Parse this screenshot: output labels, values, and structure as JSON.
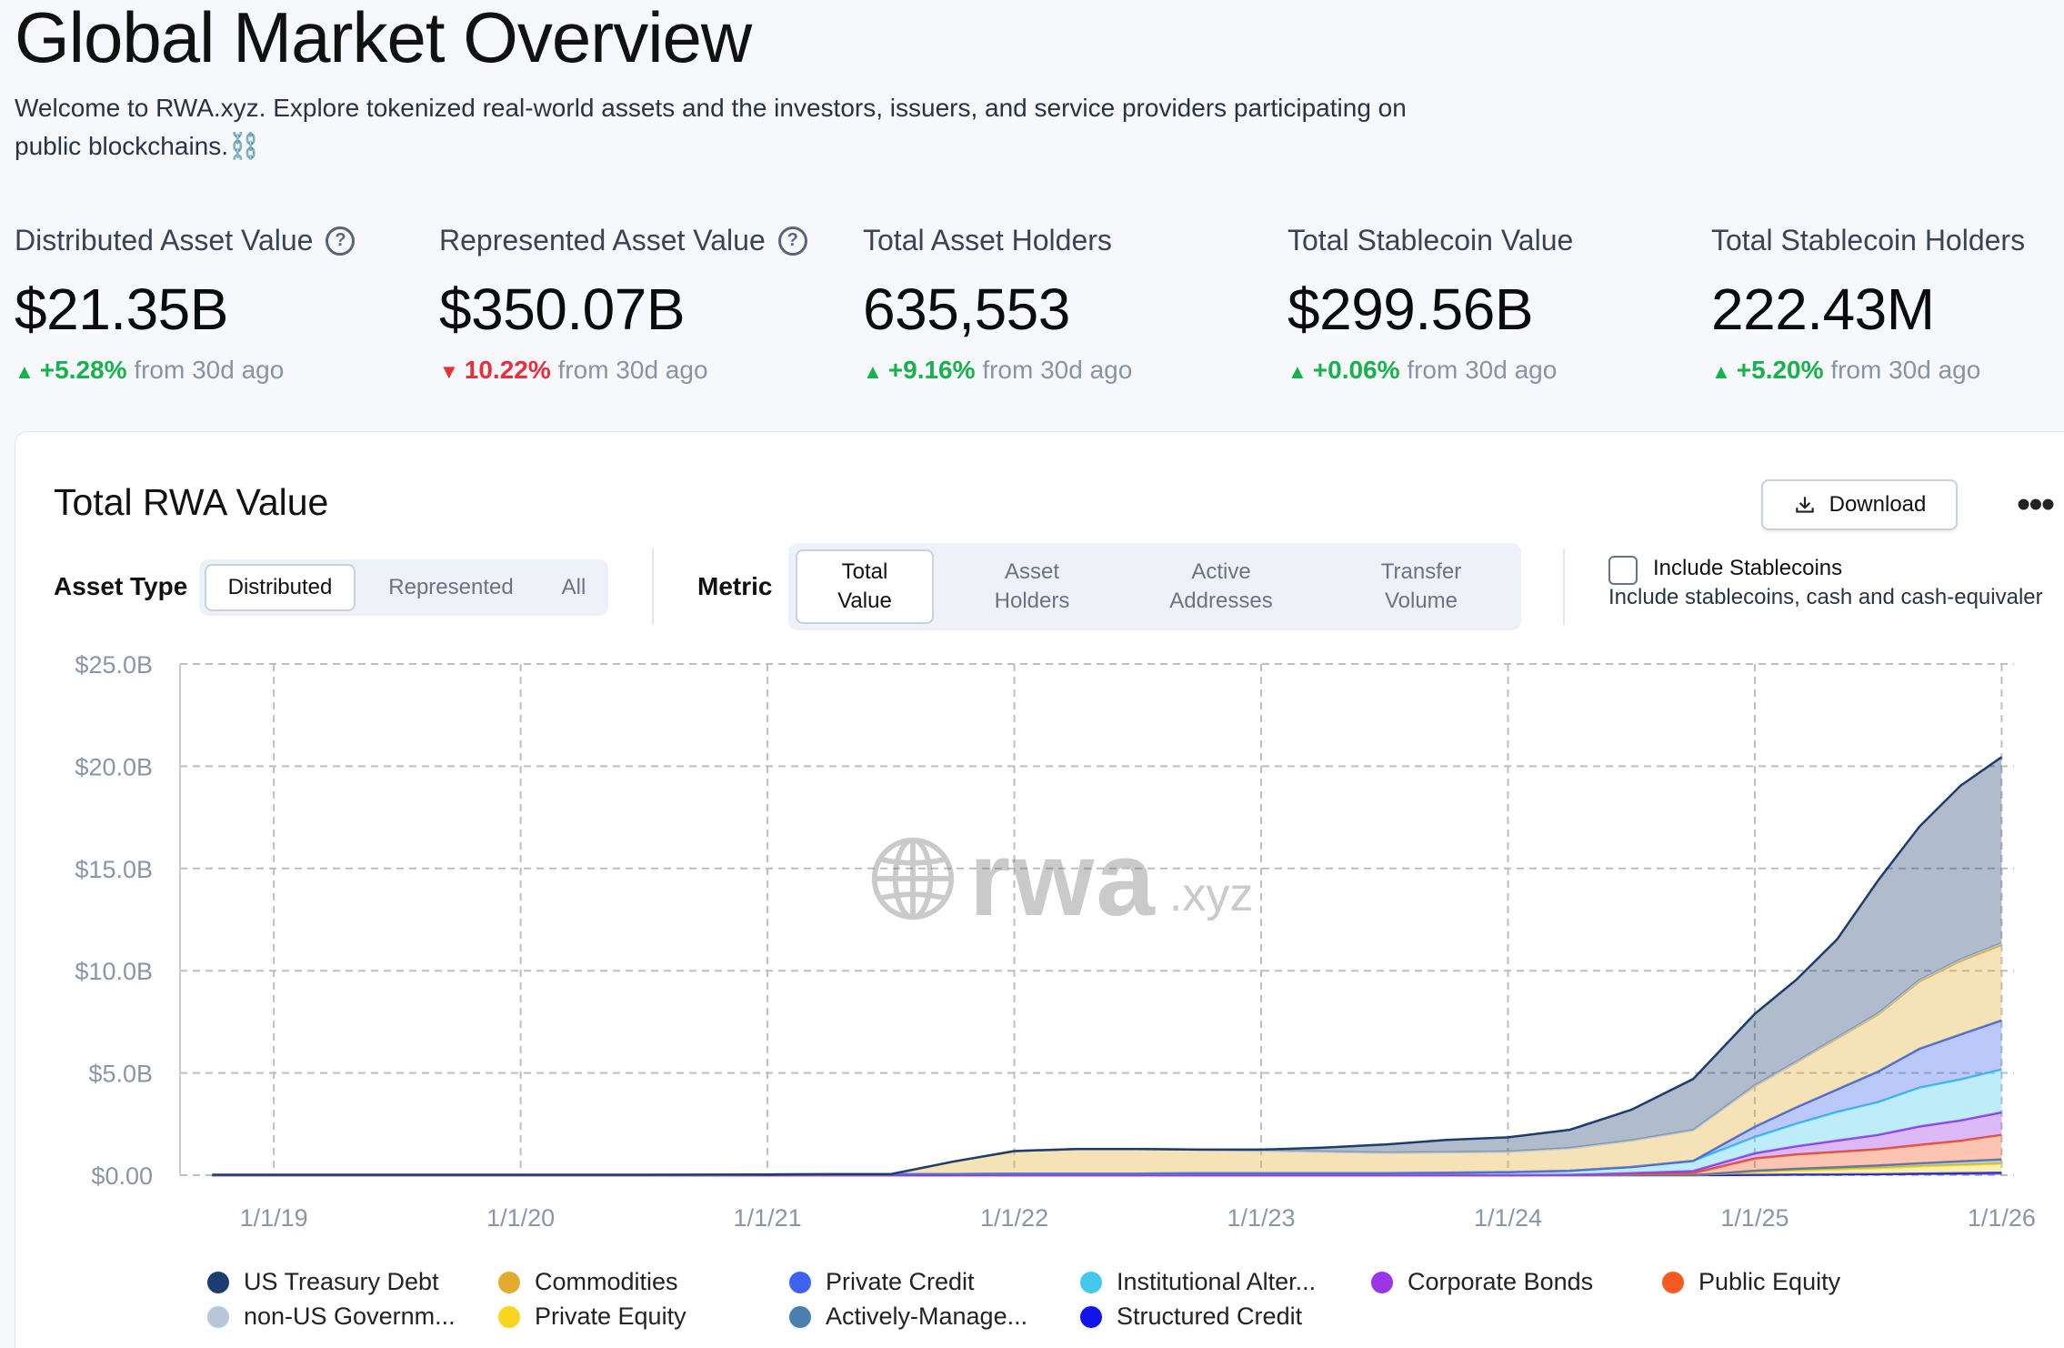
{
  "header": {
    "title": "Global Market Overview",
    "subtitle": "Welcome to RWA.xyz. Explore tokenized real-world assets and the investors, issuers, and service providers participating on public blockchains.⛓️"
  },
  "stats": [
    {
      "label": "Distributed Asset Value",
      "help": true,
      "value": "$21.35B",
      "change": "+5.28%",
      "direction": "up",
      "suffix": "from 30d ago"
    },
    {
      "label": "Represented Asset Value",
      "help": true,
      "value": "$350.07B",
      "change": "10.22%",
      "direction": "down",
      "suffix": "from 30d ago"
    },
    {
      "label": "Total Asset Holders",
      "help": false,
      "value": "635,553",
      "change": "+9.16%",
      "direction": "up",
      "suffix": "from 30d ago"
    },
    {
      "label": "Total Stablecoin Value",
      "help": false,
      "value": "$299.56B",
      "change": "+0.06%",
      "direction": "up",
      "suffix": "from 30d ago"
    },
    {
      "label": "Total Stablecoin Holders",
      "help": false,
      "value": "222.43M",
      "change": "+5.20%",
      "direction": "up",
      "suffix": "from 30d ago"
    }
  ],
  "card": {
    "title": "Total RWA Value",
    "download_label": "Download",
    "more_label": "•••",
    "asset_type_label": "Asset Type",
    "asset_type_options": [
      "Distributed",
      "Represented",
      "All"
    ],
    "metric_label": "Metric",
    "metric_options": [
      "Total\nValue",
      "Asset\nHolders",
      "Active\nAddresses",
      "Transfer\nVolume"
    ],
    "include_stablecoins_label": "Include Stablecoins",
    "include_stablecoins_desc": "Include stablecoins, cash and cash-equivaler",
    "watermark_main": "rwa",
    "watermark_suffix": ".xyz"
  },
  "colors": {
    "up": "#16b24a",
    "down": "#ec2d3a"
  },
  "chart_data": {
    "type": "area",
    "stacked": true,
    "y_ticks": [
      "$0.00",
      "$5.0B",
      "$10.0B",
      "$15.0B",
      "$20.0B",
      "$25.0B"
    ],
    "ylim": [
      0,
      25
    ],
    "x_ticks": [
      "1/1/19",
      "1/1/20",
      "1/1/21",
      "1/1/22",
      "1/1/23",
      "1/1/24",
      "1/1/25",
      "1/1/26"
    ],
    "x": [
      "2018-10",
      "2019-01",
      "2019-07",
      "2020-01",
      "2020-07",
      "2021-01",
      "2021-04",
      "2021-07",
      "2021-10",
      "2022-01",
      "2022-04",
      "2022-07",
      "2022-10",
      "2023-01",
      "2023-04",
      "2023-07",
      "2023-10",
      "2024-01",
      "2024-04",
      "2024-07",
      "2024-10",
      "2025-01",
      "2025-03",
      "2025-05",
      "2025-07",
      "2025-09",
      "2025-11",
      "2026-01"
    ],
    "grid": true,
    "legend": "bottom",
    "series": [
      {
        "name": "Structured Credit",
        "color": "#1414e8",
        "values": [
          0,
          0,
          0,
          0,
          0,
          0,
          0,
          0,
          0,
          0,
          0,
          0,
          0,
          0,
          0,
          0,
          0,
          0,
          0,
          0,
          0,
          0.02,
          0.03,
          0.04,
          0.05,
          0.08,
          0.1,
          0.12
        ]
      },
      {
        "name": "Private Equity",
        "color": "#f7d51e",
        "values": [
          0,
          0,
          0,
          0,
          0,
          0,
          0,
          0,
          0,
          0,
          0,
          0,
          0,
          0,
          0,
          0,
          0,
          0,
          0,
          0,
          0,
          0.15,
          0.2,
          0.25,
          0.3,
          0.35,
          0.4,
          0.45
        ]
      },
      {
        "name": "Actively-Manage...",
        "color": "#4a7fb2",
        "values": [
          0,
          0,
          0,
          0,
          0,
          0,
          0,
          0,
          0,
          0,
          0,
          0,
          0,
          0,
          0,
          0,
          0,
          0,
          0,
          0,
          0,
          0.05,
          0.08,
          0.1,
          0.12,
          0.15,
          0.18,
          0.2
        ]
      },
      {
        "name": "Public Equity",
        "color": "#f55a24",
        "values": [
          0,
          0,
          0,
          0,
          0,
          0,
          0,
          0,
          0,
          0,
          0,
          0,
          0,
          0,
          0,
          0,
          0,
          0,
          0.02,
          0.05,
          0.1,
          0.6,
          0.7,
          0.75,
          0.8,
          0.9,
          1.0,
          1.2
        ]
      },
      {
        "name": "Corporate Bonds",
        "color": "#9b35e8",
        "values": [
          0,
          0,
          0,
          0,
          0,
          0,
          0,
          0,
          0,
          0,
          0,
          0,
          0,
          0,
          0,
          0,
          0,
          0,
          0,
          0.05,
          0.1,
          0.25,
          0.4,
          0.55,
          0.7,
          0.9,
          1.0,
          1.1
        ]
      },
      {
        "name": "Institutional Alter...",
        "color": "#45c8ee",
        "values": [
          0.02,
          0.02,
          0.02,
          0.02,
          0.02,
          0.03,
          0.05,
          0.05,
          0.06,
          0.08,
          0.08,
          0.08,
          0.1,
          0.1,
          0.1,
          0.1,
          0.12,
          0.15,
          0.2,
          0.3,
          0.5,
          0.8,
          1.1,
          1.4,
          1.6,
          1.9,
          2.0,
          2.1
        ]
      },
      {
        "name": "Private Credit",
        "color": "#3c64f0",
        "values": [
          0,
          0,
          0,
          0,
          0,
          0,
          0,
          0,
          0,
          0,
          0,
          0,
          0,
          0,
          0,
          0,
          0,
          0,
          0,
          0,
          0,
          0.5,
          0.8,
          1.1,
          1.5,
          1.9,
          2.2,
          2.4
        ]
      },
      {
        "name": "Commodities",
        "color": "#e3ab2e",
        "values": [
          0,
          0,
          0,
          0,
          0,
          0,
          0,
          0,
          0.6,
          1.1,
          1.2,
          1.2,
          1.15,
          1.1,
          1.05,
          1.0,
          1.0,
          1.0,
          1.1,
          1.3,
          1.5,
          2.0,
          2.2,
          2.5,
          2.8,
          3.3,
          3.6,
          3.7
        ]
      },
      {
        "name": "non-US Governm...",
        "color": "#b8c6da",
        "values": [
          0,
          0,
          0,
          0,
          0,
          0,
          0,
          0,
          0,
          0,
          0,
          0,
          0,
          0,
          0,
          0,
          0,
          0,
          0,
          0,
          0,
          0.02,
          0.03,
          0.04,
          0.05,
          0.06,
          0.07,
          0.08
        ]
      },
      {
        "name": "US Treasury Debt",
        "color": "#1c3d6e",
        "values": [
          0,
          0,
          0,
          0,
          0,
          0,
          0,
          0,
          0,
          0,
          0,
          0,
          0,
          0.05,
          0.2,
          0.4,
          0.6,
          0.7,
          0.9,
          1.5,
          2.5,
          3.5,
          4.0,
          4.8,
          6.5,
          7.5,
          8.5,
          9.1
        ]
      }
    ]
  }
}
